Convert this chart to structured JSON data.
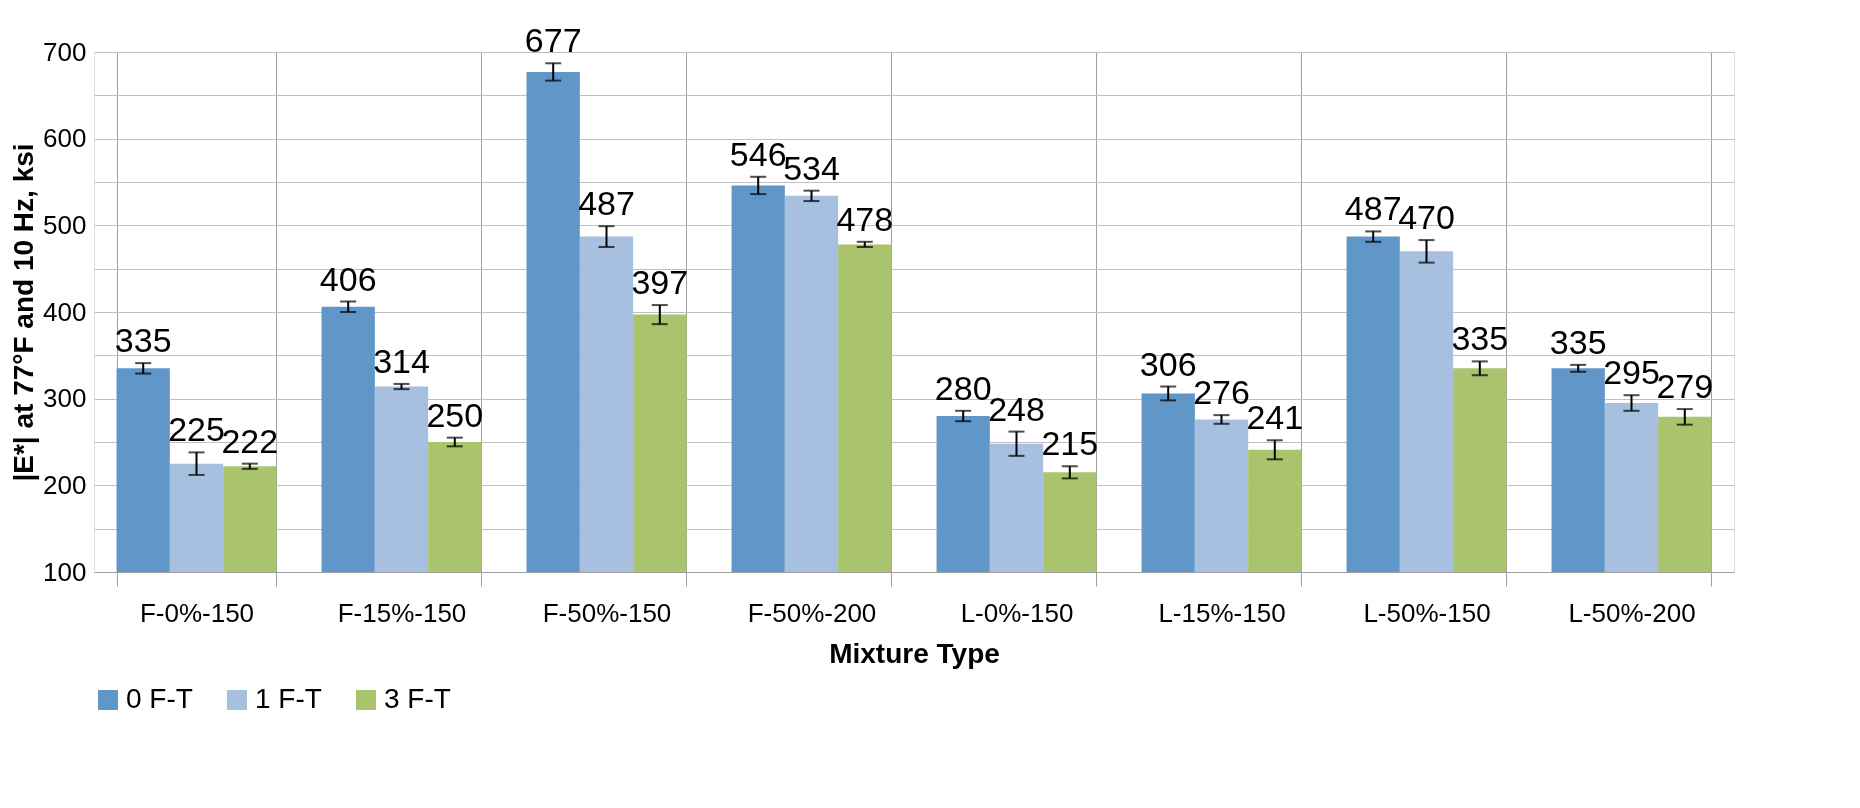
{
  "chart_data": {
    "type": "bar",
    "xlabel": "Mixture Type",
    "ylabel": "|E*| at 77°F and 10 Hz, ksi",
    "categories": [
      "F-0%-150",
      "F-15%-150",
      "F-50%-150",
      "F-50%-200",
      "L-0%-150",
      "L-15%-150",
      "L-50%-150",
      "L-50%-200"
    ],
    "series": [
      {
        "name": "0 F-T",
        "color": "#6096c8",
        "values": [
          335,
          406,
          677,
          546,
          280,
          306,
          487,
          335
        ],
        "errors": [
          6,
          6,
          10,
          10,
          6,
          8,
          6,
          4
        ]
      },
      {
        "name": "1 F-T",
        "color": "#a7c0e0",
        "values": [
          225,
          314,
          487,
          534,
          248,
          276,
          470,
          295
        ],
        "errors": [
          13,
          3,
          12,
          6,
          14,
          5,
          13,
          9
        ]
      },
      {
        "name": "3 F-T",
        "color": "#a9c46c",
        "values": [
          222,
          250,
          397,
          478,
          215,
          241,
          335,
          279
        ],
        "errors": [
          3,
          5,
          11,
          3,
          7,
          11,
          8,
          9
        ]
      }
    ],
    "ylim": [
      100,
      700
    ],
    "yticks": [
      100,
      {
        "value": 150,
        "label": null
      },
      200,
      {
        "value": 250,
        "label": null
      },
      300,
      {
        "value": 350,
        "label": null
      },
      400,
      {
        "value": 450,
        "label": null
      },
      500,
      {
        "value": 550,
        "label": null
      },
      600,
      {
        "value": 650,
        "label": null
      },
      700
    ],
    "grid": true,
    "legend": "bottom",
    "data_labels": true
  }
}
